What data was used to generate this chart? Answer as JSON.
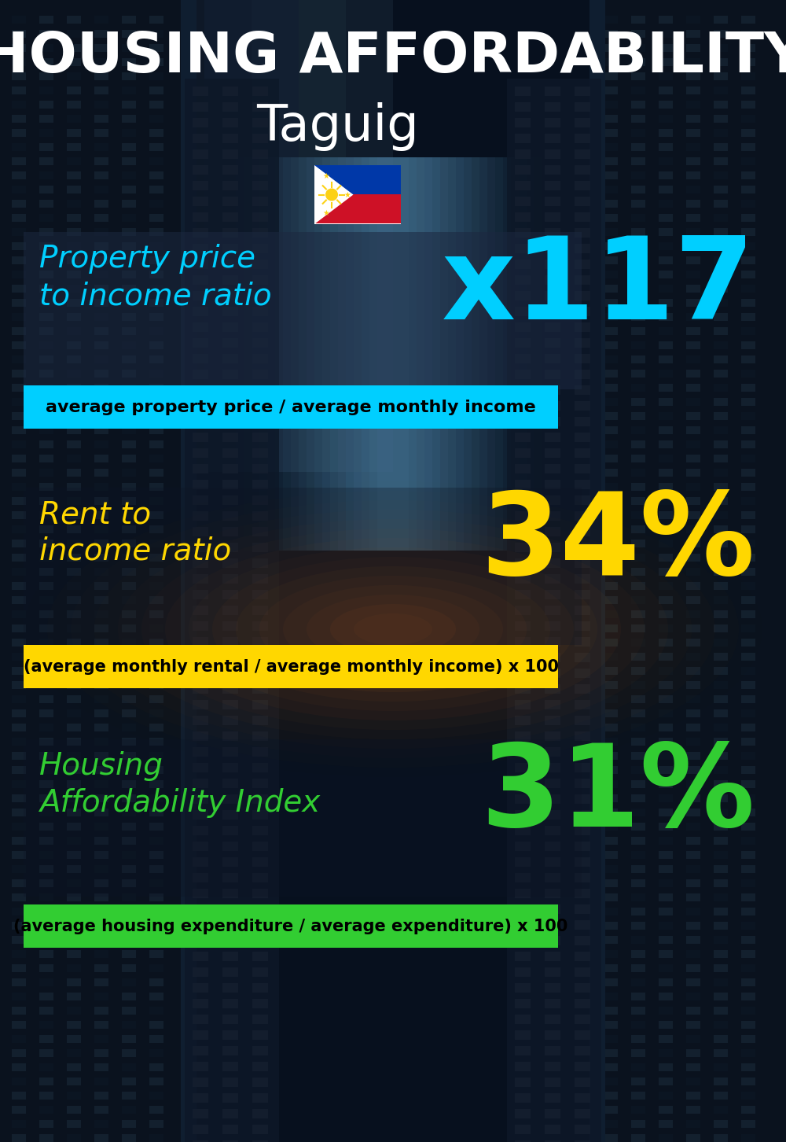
{
  "title_line1": "HOUSING AFFORDABILITY",
  "title_line2": "Taguig",
  "section1_label": "Property price\nto income ratio",
  "section1_value": "x117",
  "section1_sublabel": "average property price / average monthly income",
  "section1_label_color": "#00cfff",
  "section1_value_color": "#00cfff",
  "section1_banner_color": "#00cfff",
  "section2_label": "Rent to\nincome ratio",
  "section2_value": "34%",
  "section2_sublabel": "(average monthly rental / average monthly income) x 100",
  "section2_label_color": "#FFD700",
  "section2_value_color": "#FFD700",
  "section2_banner_color": "#FFD700",
  "section3_label": "Housing\nAffordability Index",
  "section3_value": "31%",
  "section3_sublabel": "(average housing expenditure / average expenditure) x 100",
  "section3_label_color": "#32CD32",
  "section3_value_color": "#32CD32",
  "section3_banner_color": "#32CD32",
  "bg_color": "#050810",
  "title_color": "#ffffff",
  "banner_text_color": "#000000"
}
